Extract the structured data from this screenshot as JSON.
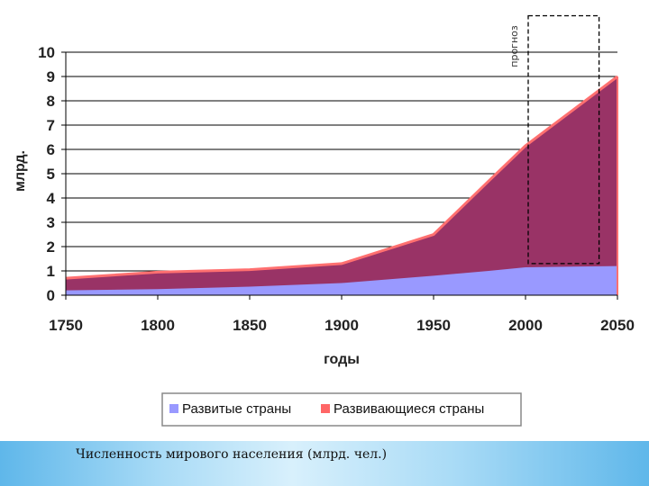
{
  "chart_data": {
    "type": "area",
    "stacked": true,
    "xlabel": "годы",
    "ylabel": "млрд.",
    "xlim": [
      1750,
      2050
    ],
    "ylim": [
      0,
      10
    ],
    "xticks": [
      "1750",
      "1800",
      "1850",
      "1900",
      "1950",
      "2000",
      "2050"
    ],
    "yticks": [
      "0",
      "1",
      "2",
      "3",
      "4",
      "5",
      "6",
      "7",
      "8",
      "9",
      "10"
    ],
    "grid": "horizontal",
    "x": [
      1750,
      1800,
      1850,
      1900,
      1950,
      1980,
      2000,
      2050
    ],
    "series": [
      {
        "name": "Развитые страны",
        "color": "#9999ff",
        "values": [
          0.2,
          0.25,
          0.35,
          0.5,
          0.8,
          1.0,
          1.15,
          1.2
        ]
      },
      {
        "name": "Развивающиеся страны",
        "color": "#993366",
        "values": [
          0.5,
          0.7,
          0.7,
          0.8,
          1.7,
          3.7,
          5.0,
          7.8
        ]
      }
    ],
    "forecast": {
      "label": "прогноз",
      "x_range": [
        2000,
        2040
      ],
      "y_range": [
        1.3,
        11.5
      ]
    },
    "legend_position": "bottom"
  },
  "caption": "Численность мирового населения (млрд. чел.)"
}
